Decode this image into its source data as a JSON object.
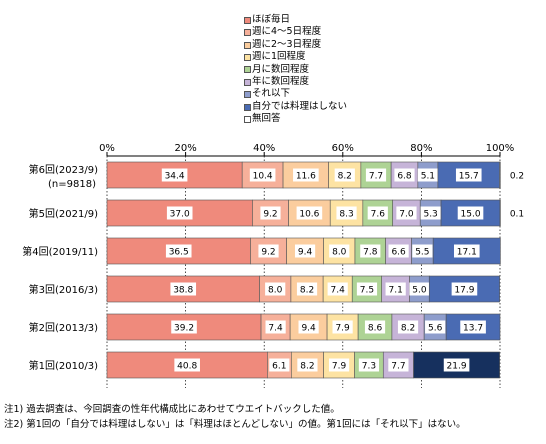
{
  "chart_data": {
    "type": "bar",
    "orientation": "horizontal",
    "stacked": true,
    "percent": true,
    "xlim": [
      0,
      100
    ],
    "x_ticks": [
      "0%",
      "20%",
      "40%",
      "60%",
      "80%",
      "100%"
    ],
    "legend_position": "top-right",
    "categories": [
      {
        "label": "第6回(2023/9)",
        "sublabel": "(n=9818)"
      },
      {
        "label": "第5回(2021/9)",
        "sublabel": ""
      },
      {
        "label": "第4回(2019/11)",
        "sublabel": ""
      },
      {
        "label": "第3回(2016/3)",
        "sublabel": ""
      },
      {
        "label": "第2回(2013/3)",
        "sublabel": ""
      },
      {
        "label": "第1回(2010/3)",
        "sublabel": ""
      }
    ],
    "series": [
      {
        "name": "ほぼ毎日",
        "color": "#ef8a7c",
        "values": [
          34.4,
          37.0,
          36.5,
          38.8,
          39.2,
          40.8
        ]
      },
      {
        "name": "週に4～5日程度",
        "color": "#f6b09a",
        "values": [
          10.4,
          9.2,
          9.2,
          8.0,
          7.4,
          6.1
        ]
      },
      {
        "name": "週に2～3日程度",
        "color": "#fbcd9e",
        "values": [
          11.6,
          10.6,
          9.4,
          8.2,
          9.4,
          8.2
        ]
      },
      {
        "name": "週に1回程度",
        "color": "#fde3a3",
        "values": [
          8.2,
          8.3,
          8.0,
          7.4,
          7.9,
          7.9
        ]
      },
      {
        "name": "月に数回程度",
        "color": "#aed395",
        "values": [
          7.7,
          7.6,
          7.8,
          7.5,
          8.6,
          7.3
        ]
      },
      {
        "name": "年に数回程度",
        "color": "#c6b4d8",
        "values": [
          6.8,
          7.0,
          6.6,
          7.1,
          8.2,
          7.7
        ]
      },
      {
        "name": "それ以下",
        "color": "#8e9dcc",
        "values": [
          5.1,
          5.3,
          5.5,
          5.0,
          5.6,
          null
        ]
      },
      {
        "name": "自分では料理はしない",
        "color": "#4a6bb3",
        "values": [
          15.7,
          15.0,
          17.1,
          17.9,
          13.7,
          21.9
        ]
      },
      {
        "name": "無回答",
        "color": "#ffffff",
        "values": [
          0.2,
          0.1,
          null,
          null,
          null,
          null
        ]
      }
    ],
    "special_colors": {
      "第1回 自分では料理はしない": "#16305e"
    }
  },
  "notes": [
    "注1) 過去調査は、今回調査の性年代構成比にあわせてウエイトバックした値。",
    "注2) 第1回の「自分では料理はしない」は「料理はほとんどしない」の値。第1回には「それ以下」はない。"
  ]
}
